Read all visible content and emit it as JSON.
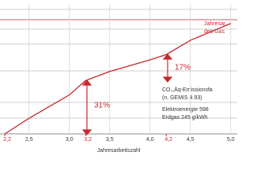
{
  "chart_data": {
    "type": "line",
    "x_label": "Jahresarbeitszahl",
    "xlim": [
      2.14,
      5.08
    ],
    "ylim": [
      0,
      100
    ],
    "xticks": [
      {
        "value": 2.5,
        "label": "2,5"
      },
      {
        "value": 3.0,
        "label": "3,0"
      },
      {
        "value": 3.5,
        "label": "3,5"
      },
      {
        "value": 4.0,
        "label": "4,0"
      },
      {
        "value": 4.5,
        "label": "4,5"
      },
      {
        "value": 5.0,
        "label": "5,0"
      }
    ],
    "highlight_x": [
      {
        "value": 2.2,
        "label": "2,2"
      },
      {
        "value": 3.2,
        "label": "3,2"
      },
      {
        "value": 4.2,
        "label": "4,2"
      }
    ],
    "x": [
      2.2,
      2.5,
      3.0,
      3.2,
      3.5,
      4.0,
      4.2,
      4.5,
      5.0
    ],
    "series": [
      {
        "color": "#c8282d",
        "values": [
          0,
          12,
          30,
          41,
          48,
          57,
          61,
          72,
          85
        ]
      }
    ],
    "annotations": [
      "17%",
      "31%"
    ],
    "notes": [
      "Jahresar",
      "des Gas",
      "CO₂,Äq-Emissionsfa",
      "(n. GEMIS 4.93)",
      "Elektroenergie 598",
      "Erdgas 245 g/kWh"
    ]
  }
}
